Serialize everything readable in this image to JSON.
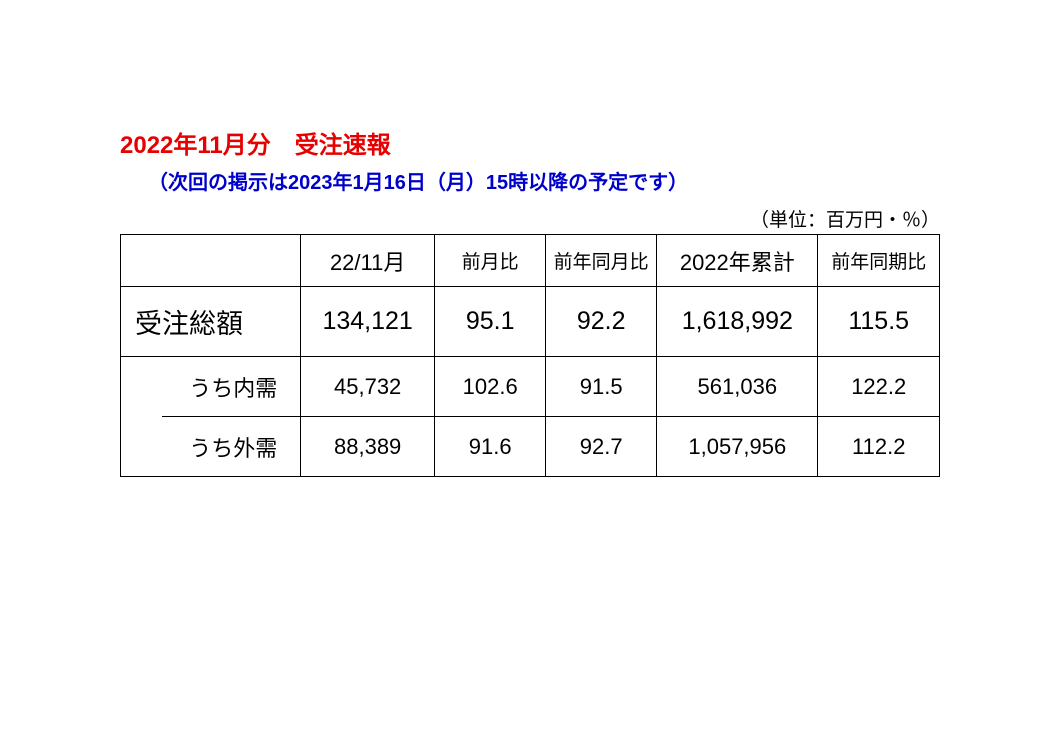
{
  "title": "2022年11月分　受注速報",
  "subtitle": "（次回の掲示は2023年1月16日（月）15時以降の予定です）",
  "unit_label": "（単位：百万円・％）",
  "colors": {
    "title": "#e60000",
    "subtitle": "#0000cc",
    "text": "#000000",
    "border": "#000000",
    "background": "#ffffff"
  },
  "table": {
    "type": "table",
    "columns": [
      {
        "key": "label",
        "header": ""
      },
      {
        "key": "month",
        "header": "22/11月"
      },
      {
        "key": "mom",
        "header": "前月比"
      },
      {
        "key": "yoy",
        "header": "前年同月比"
      },
      {
        "key": "cum",
        "header": "2022年累計"
      },
      {
        "key": "cum_yoy",
        "header": "前年同期比"
      }
    ],
    "rows": [
      {
        "label": "受注総額",
        "month": "134,121",
        "mom": "95.1",
        "yoy": "92.2",
        "cum": "1,618,992",
        "cum_yoy": "115.5",
        "is_total": true
      },
      {
        "label": "うち内需",
        "month": "45,732",
        "mom": "102.6",
        "yoy": "91.5",
        "cum": "561,036",
        "cum_yoy": "122.2",
        "is_total": false
      },
      {
        "label": "うち外需",
        "month": "88,389",
        "mom": "91.6",
        "yoy": "92.7",
        "cum": "1,057,956",
        "cum_yoy": "112.2",
        "is_total": false
      }
    ]
  }
}
